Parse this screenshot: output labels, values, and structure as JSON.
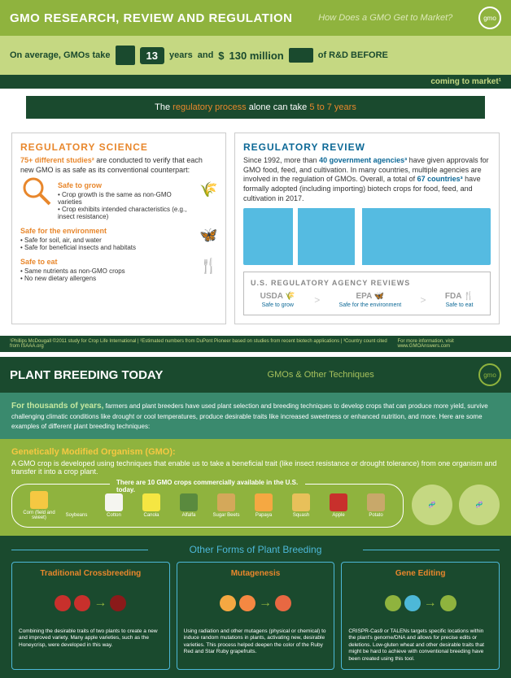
{
  "panel1": {
    "header_title": "GMO RESEARCH, REVIEW AND REGULATION",
    "header_subtitle": "How Does a GMO Get to Market?",
    "logo_text": "gmo",
    "stats": {
      "prefix": "On average, GMOs take",
      "years": "13",
      "years_unit": "years",
      "and": "and",
      "cost_prefix": "$",
      "cost": "130 million",
      "suffix": "of R&D BEFORE",
      "arrow_text": "coming to market¹"
    },
    "regproc_prefix": "The ",
    "regproc_highlight": "regulatory process",
    "regproc_middle": " alone can take ",
    "regproc_years": "5 to 7 years",
    "science": {
      "title": "REGULATORY SCIENCE",
      "lead_bold": "75+ different studies²",
      "lead_text": " are conducted to verify that each new GMO is as safe as its conventional counterpart:",
      "items": [
        {
          "title": "Safe to grow",
          "bullets": [
            "Crop growth is the same as non-GMO varieties",
            "Crop exhibits intended characteristics (e.g., insect resistance)"
          ],
          "icon": "🌾"
        },
        {
          "title": "Safe for the environment",
          "bullets": [
            "Safe for soil, air, and water",
            "Safe for beneficial insects and habitats"
          ],
          "icon": "🦋"
        },
        {
          "title": "Safe to eat",
          "bullets": [
            "Same nutrients as non-GMO crops",
            "No new dietary allergens"
          ],
          "icon": "🍴"
        }
      ]
    },
    "review": {
      "title": "REGULATORY REVIEW",
      "lead_pre": "Since 1992, more than ",
      "lead_bold1": "40 government agencies³",
      "lead_mid": " have given approvals for GMO food, feed, and cultivation. In many countries, multiple agencies are involved in the regulation of GMOs. Overall, a total of ",
      "lead_bold2": "67 countries³",
      "lead_post": " have formally adopted (including importing) biotech crops for food, feed, and cultivation in 2017.",
      "agencies_title": "U.S. REGULATORY AGENCY REVIEWS",
      "agencies": [
        {
          "name": "USDA",
          "label": "Safe to grow",
          "icon": "🌾"
        },
        {
          "name": "EPA",
          "label": "Safe for the environment",
          "icon": "🦋"
        },
        {
          "name": "FDA",
          "label": "Safe to eat",
          "icon": "🍴"
        }
      ]
    },
    "footnote_left": "¹Phillips McDougall ©2011 study for Crop Life International | ²Estimated numbers from DuPont Pioneer based on studies from recent biotech applications | ³Country count cited from ISAAA.org",
    "footnote_right": "For more information, visit www.GMOAnswers.com"
  },
  "panel2": {
    "header_title": "PLANT BREEDING TODAY",
    "header_subtitle": "GMOs & Other Techniques",
    "intro_bold": "For thousands of years,",
    "intro_text": " farmers and plant breeders have used plant selection and breeding techniques to develop crops that can produce more yield, survive challenging climatic conditions like drought or cool temperatures, produce desirable traits like increased sweetness or enhanced nutrition, and more. Here are some examples of different plant breeding techniques:",
    "gmo_title": "Genetically Modified Organism (GMO):",
    "gmo_text": "A GMO crop is developed using techniques that enable us to take a beneficial trait (like insect resistance or drought tolerance) from one organism and transfer it into a crop plant.",
    "crops_title": "There are 10 GMO crops commercially available in the U.S. today.",
    "crops": [
      {
        "name": "Corn (field and sweet)",
        "color": "#f5c842"
      },
      {
        "name": "Soybeans",
        "color": "#8fb33e"
      },
      {
        "name": "Cotton",
        "color": "#f5f5f0"
      },
      {
        "name": "Canola",
        "color": "#f5e642"
      },
      {
        "name": "Alfalfa",
        "color": "#5a8a3e"
      },
      {
        "name": "Sugar Beets",
        "color": "#d4a85a"
      },
      {
        "name": "Papaya",
        "color": "#f5a842"
      },
      {
        "name": "Squash",
        "color": "#e8c05a"
      },
      {
        "name": "Apple",
        "color": "#c8302c"
      },
      {
        "name": "Potato",
        "color": "#c8a86a"
      }
    ],
    "other_title": "Other Forms of Plant Breeding",
    "techniques": [
      {
        "title": "Traditional Crossbreeding",
        "desc": "Combining the desirable traits of two plants to create a new and improved variety. Many apple varieties, such as the Honeycrisp, were developed in this way.",
        "c1": "#c8302c",
        "c2": "#c8302c",
        "c3": "#8b1a1a"
      },
      {
        "title": "Mutagenesis",
        "desc": "Using radiation and other mutagens (physical or chemical) to induce random mutations in plants, activating new, desirable varieties. This process helped deepen the color of the Ruby Red and Star Ruby grapefruits.",
        "c1": "#f5a842",
        "c2": "#f58842",
        "c3": "#e86842"
      },
      {
        "title": "Gene Editing",
        "desc": "CRISPR-Cas9 or TALENs targets specific locations within the plant's genome/DNA and allows for precise edits or deletions. Low-gluten wheat and other desirable traits that might be hard to achieve with conventional breeding have been created using this tool.",
        "c1": "#8fb33e",
        "c2": "#4db8d8",
        "c3": "#8fb33e"
      }
    ]
  },
  "colors": {
    "green_dark": "#1a4a2e",
    "green_mid": "#8fb33e",
    "green_light": "#c5d882",
    "orange": "#e8872c",
    "blue": "#0c6896",
    "cyan": "#4db8d8",
    "teal": "#3a8a6e",
    "yellow": "#f5c842"
  }
}
